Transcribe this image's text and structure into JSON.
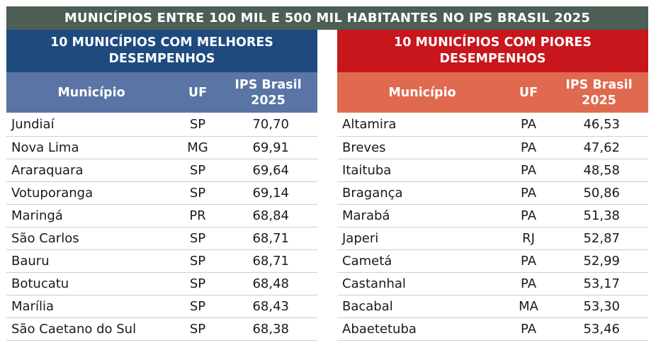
{
  "title": "MUNICÍPIOS ENTRE 100 MIL E 500 MIL HABITANTES NO IPS BRASIL 2025",
  "best": {
    "heading": "10 MUNICÍPIOS COM MELHORES DESEMPENHOS",
    "columns": {
      "municipio": "Município",
      "uf": "UF",
      "ips": "IPS Brasil 2025"
    },
    "rows": [
      {
        "municipio": "Jundiaí",
        "uf": "SP",
        "ips": "70,70"
      },
      {
        "municipio": "Nova Lima",
        "uf": "MG",
        "ips": "69,91"
      },
      {
        "municipio": "Araraquara",
        "uf": "SP",
        "ips": "69,64"
      },
      {
        "municipio": "Votuporanga",
        "uf": "SP",
        "ips": "69,14"
      },
      {
        "municipio": "Maringá",
        "uf": "PR",
        "ips": "68,84"
      },
      {
        "municipio": "São Carlos",
        "uf": "SP",
        "ips": "68,71"
      },
      {
        "municipio": "Bauru",
        "uf": "SP",
        "ips": "68,71"
      },
      {
        "municipio": "Botucatu",
        "uf": "SP",
        "ips": "68,48"
      },
      {
        "municipio": "Marília",
        "uf": "SP",
        "ips": "68,43"
      },
      {
        "municipio": "São Caetano do Sul",
        "uf": "SP",
        "ips": "68,38"
      }
    ]
  },
  "worst": {
    "heading": "10 MUNICÍPIOS COM PIORES DESEMPENHOS",
    "columns": {
      "municipio": "Município",
      "uf": "UF",
      "ips": "IPS Brasil 2025"
    },
    "rows": [
      {
        "municipio": "Altamira",
        "uf": "PA",
        "ips": "46,53"
      },
      {
        "municipio": "Breves",
        "uf": "PA",
        "ips": "47,62"
      },
      {
        "municipio": "Itaituba",
        "uf": "PA",
        "ips": "48,58"
      },
      {
        "municipio": "Bragança",
        "uf": "PA",
        "ips": "50,86"
      },
      {
        "municipio": "Marabá",
        "uf": "PA",
        "ips": "51,38"
      },
      {
        "municipio": "Japeri",
        "uf": "RJ",
        "ips": "52,87"
      },
      {
        "municipio": "Cametá",
        "uf": "PA",
        "ips": "52,99"
      },
      {
        "municipio": "Castanhal",
        "uf": "PA",
        "ips": "53,17"
      },
      {
        "municipio": "Bacabal",
        "uf": "MA",
        "ips": "53,30"
      },
      {
        "municipio": "Abaetetuba",
        "uf": "PA",
        "ips": "53,46"
      }
    ]
  },
  "colors": {
    "banner": "#4d5e55",
    "best_title": "#1e4a7e",
    "best_header": "#5a75a5",
    "worst_title": "#c8161d",
    "worst_header": "#e06a4f"
  }
}
